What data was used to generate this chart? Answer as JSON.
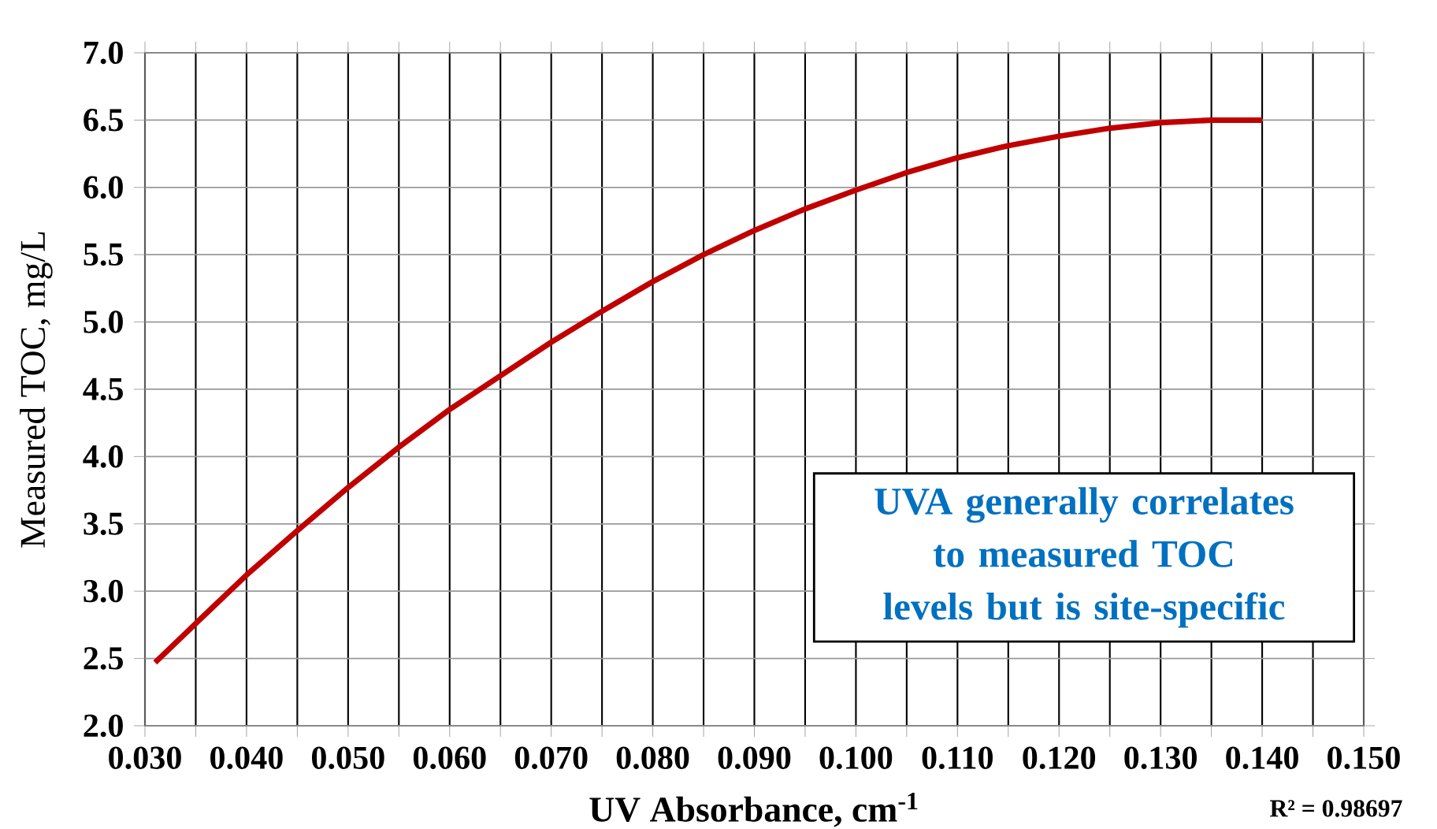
{
  "chart_data": {
    "type": "line",
    "xlabel": "UV Absorbance, cm$^{-1}$",
    "ylabel": "Measured TOC, mg/L",
    "annotations": [
      "UVA generally correlates to measured TOC levels but is site-specific",
      "R² = 0.98697"
    ],
    "x": [
      0.031,
      0.035,
      0.04,
      0.045,
      0.05,
      0.055,
      0.06,
      0.065,
      0.07,
      0.075,
      0.08,
      0.085,
      0.09,
      0.095,
      0.1,
      0.105,
      0.11,
      0.115,
      0.12,
      0.125,
      0.13,
      0.135,
      0.14
    ],
    "values": [
      2.47,
      2.76,
      3.12,
      3.45,
      3.77,
      4.07,
      4.35,
      4.6,
      4.85,
      5.08,
      5.3,
      5.5,
      5.68,
      5.84,
      5.98,
      6.11,
      6.22,
      6.31,
      6.38,
      6.44,
      6.48,
      6.5,
      6.5
    ],
    "color": "#c00000",
    "grid": true,
    "marker": "none",
    "line_style": "solid",
    "xlim": [
      0.03,
      0.15
    ],
    "ylim": [
      2.0,
      7.0
    ],
    "xticks": [
      {
        "value": 0.03,
        "label": "0.030"
      },
      {
        "value": 0.035,
        "label": null
      },
      {
        "value": 0.04,
        "label": "0.040"
      },
      {
        "value": 0.045,
        "label": null
      },
      {
        "value": 0.05,
        "label": "0.050"
      },
      {
        "value": 0.055,
        "label": null
      },
      {
        "value": 0.06,
        "label": "0.060"
      },
      {
        "value": 0.065,
        "label": null
      },
      {
        "value": 0.07,
        "label": "0.070"
      },
      {
        "value": 0.075,
        "label": null
      },
      {
        "value": 0.08,
        "label": "0.080"
      },
      {
        "value": 0.085,
        "label": null
      },
      {
        "value": 0.09,
        "label": "0.090"
      },
      {
        "value": 0.095,
        "label": null
      },
      {
        "value": 0.1,
        "label": "0.100"
      },
      {
        "value": 0.105,
        "label": null
      },
      {
        "value": 0.11,
        "label": "0.110"
      },
      {
        "value": 0.115,
        "label": null
      },
      {
        "value": 0.12,
        "label": "0.120"
      },
      {
        "value": 0.125,
        "label": null
      },
      {
        "value": 0.13,
        "label": "0.130"
      },
      {
        "value": 0.135,
        "label": null
      },
      {
        "value": 0.14,
        "label": "0.140"
      },
      {
        "value": 0.145,
        "label": null
      },
      {
        "value": 0.15,
        "label": "0.150"
      }
    ],
    "yticks": [
      {
        "value": 2,
        "label": "2.0"
      },
      {
        "value": 2.5,
        "label": "2.5"
      },
      {
        "value": 3,
        "label": "3.0"
      },
      {
        "value": 3.5,
        "label": "3.5"
      },
      {
        "value": 4,
        "label": "4.0"
      },
      {
        "value": 4.5,
        "label": "4.5"
      },
      {
        "value": 5,
        "label": "5.0"
      },
      {
        "value": 5.5,
        "label": "5.5"
      },
      {
        "value": 6,
        "label": "6.0"
      },
      {
        "value": 6.5,
        "label": "6.5"
      },
      {
        "value": 7,
        "label": "7.0"
      }
    ]
  }
}
